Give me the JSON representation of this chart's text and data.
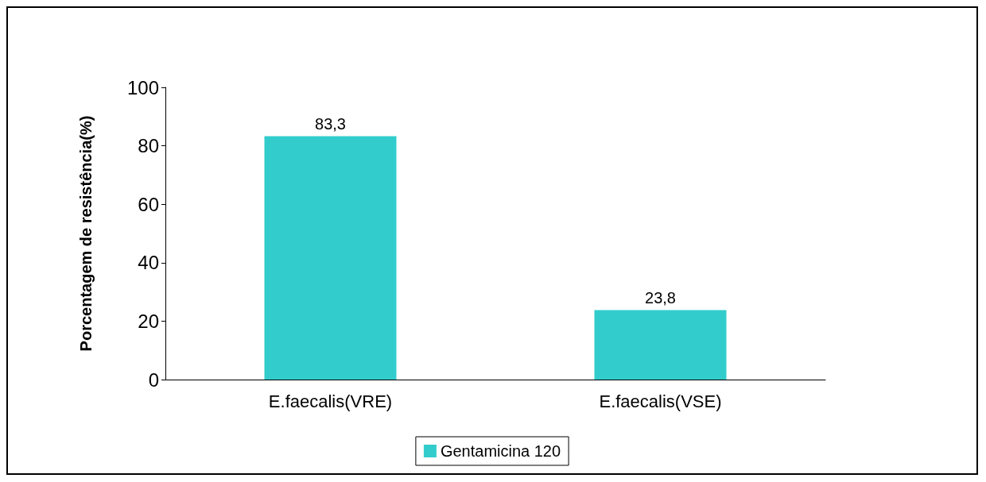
{
  "chart_data": {
    "type": "bar",
    "ylabel": "Porcentagem de resistência(%)",
    "categories": [
      "E.faecalis(VRE)",
      "E.faecalis(VSE)"
    ],
    "series": [
      {
        "name": "Gentamicina 120",
        "color": "#33cccc",
        "values": [
          83.3,
          23.8
        ],
        "value_labels": [
          "83,3",
          "23,8"
        ]
      }
    ],
    "ylim": [
      0,
      100
    ],
    "yticks": [
      0,
      20,
      40,
      60,
      80,
      100
    ],
    "grid": false,
    "legend": "bottom"
  }
}
